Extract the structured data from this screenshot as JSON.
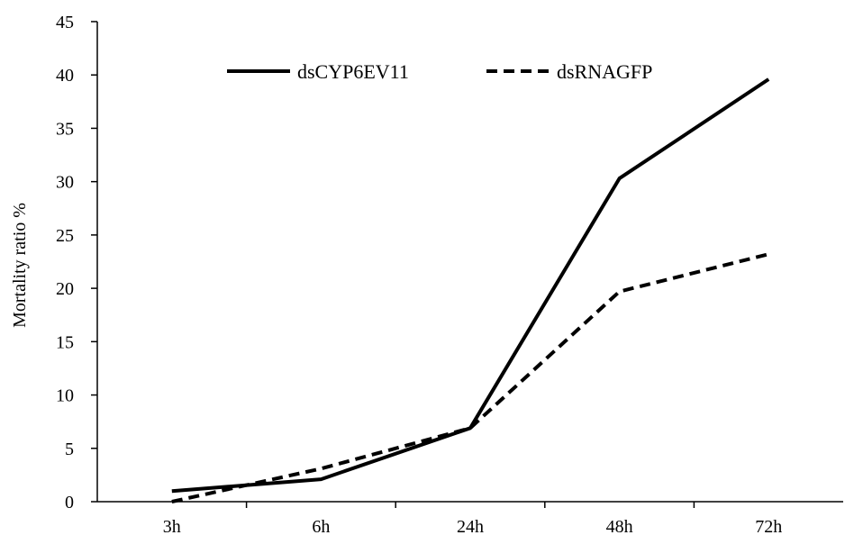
{
  "chart_data": {
    "type": "line",
    "title": "",
    "xlabel": "",
    "ylabel": "Mortality ratio %",
    "categories": [
      "3h",
      "6h",
      "24h",
      "48h",
      "72h"
    ],
    "ylim": [
      0,
      45
    ],
    "yticks": [
      0,
      5,
      10,
      15,
      20,
      25,
      30,
      35,
      40,
      45
    ],
    "grid": false,
    "legend_position": "top",
    "series": [
      {
        "name": "dsCYP6EV11",
        "line_style": "solid",
        "color": "#000000",
        "values": [
          1.0,
          2.1,
          6.9,
          30.3,
          39.6
        ]
      },
      {
        "name": "dsRNAGFP",
        "line_style": "dashed",
        "color": "#000000",
        "values": [
          0.0,
          3.1,
          6.9,
          19.7,
          23.2
        ]
      }
    ]
  }
}
